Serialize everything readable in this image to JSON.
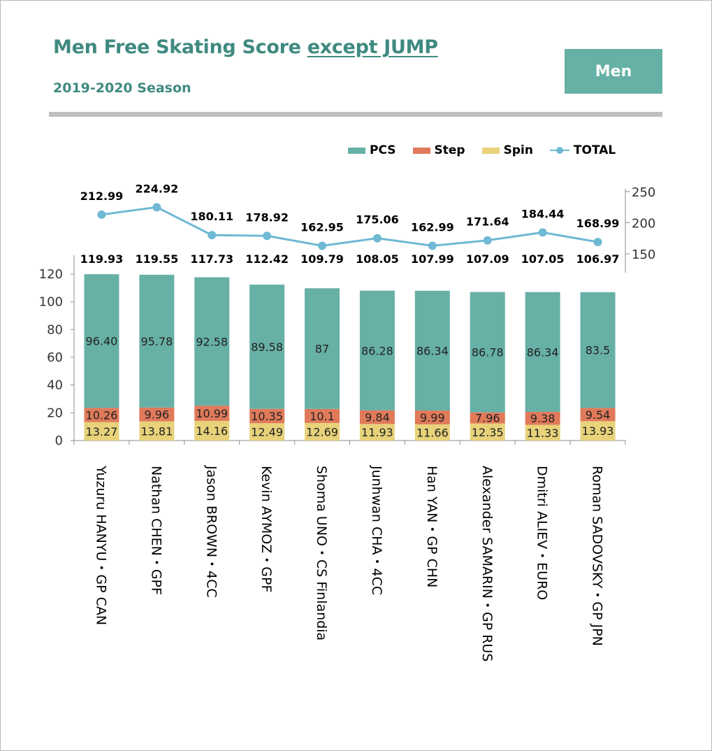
{
  "title": {
    "main": "Men Free Skating Score ",
    "emphasis": "except JUMP"
  },
  "subtitle": "2019-2020 Season",
  "badge": "Men",
  "colors": {
    "pcs": "#67b0a6",
    "step": "#e07a5a",
    "spin": "#e8d27a",
    "total": "#6fb9d4",
    "accent": "#3f8a80"
  },
  "chart_data": {
    "type": "bar",
    "stacked": true,
    "categories": [
      "Yuzuru HANYU・GP CAN",
      "Nathan CHEN・GPF",
      "Jason BROWN・4CC",
      "Kevin AYMOZ・GPF",
      "Shoma UNO・CS Finlandia",
      "Junhwan CHA・4CC",
      "Han YAN・GP CHN",
      "Alexander SAMARIN・GP RUS",
      "Dmitri ALIEV・EURO",
      "Roman SADOVSKY・GP JPN"
    ],
    "series": [
      {
        "name": "PCS",
        "values": [
          96.4,
          95.78,
          92.58,
          89.58,
          87,
          86.28,
          86.34,
          86.78,
          86.34,
          83.5
        ],
        "labels": [
          "96.40",
          "95.78",
          "92.58",
          "89.58",
          "87",
          "86.28",
          "86.34",
          "86.78",
          "86.34",
          "83.5"
        ]
      },
      {
        "name": "Step",
        "values": [
          10.26,
          9.96,
          10.99,
          10.35,
          10.1,
          9.84,
          9.99,
          7.96,
          9.38,
          9.54
        ],
        "labels": [
          "10.26",
          "9.96",
          "10.99",
          "10.35",
          "10.1",
          "9.84",
          "9.99",
          "7.96",
          "9.38",
          "9.54"
        ]
      },
      {
        "name": "Spin",
        "values": [
          13.27,
          13.81,
          14.16,
          12.49,
          12.69,
          11.93,
          11.66,
          12.35,
          11.33,
          13.93
        ],
        "labels": [
          "13.27",
          "13.81",
          "14.16",
          "12.49",
          "12.69",
          "11.93",
          "11.66",
          "12.35",
          "11.33",
          "13.93"
        ]
      }
    ],
    "bar_totals": [
      "119.93",
      "119.55",
      "117.73",
      "112.42",
      "109.79",
      "108.05",
      "107.99",
      "107.09",
      "107.05",
      "106.97"
    ],
    "line": {
      "name": "TOTAL",
      "values": [
        212.99,
        224.92,
        180.11,
        178.92,
        162.95,
        175.06,
        162.99,
        171.64,
        184.44,
        168.99
      ],
      "labels": [
        "212.99",
        "224.92",
        "180.11",
        "178.92",
        "162.95",
        "175.06",
        "162.99",
        "171.64",
        "184.44",
        "168.99"
      ]
    },
    "y_left": {
      "min": 0,
      "max": 120,
      "ticks": [
        "0",
        "20",
        "40",
        "60",
        "80",
        "100",
        "120"
      ]
    },
    "y_right": {
      "min": 150,
      "max": 250,
      "ticks": [
        "150",
        "200",
        "250"
      ]
    },
    "legend_position": "top-right",
    "grid": false
  }
}
